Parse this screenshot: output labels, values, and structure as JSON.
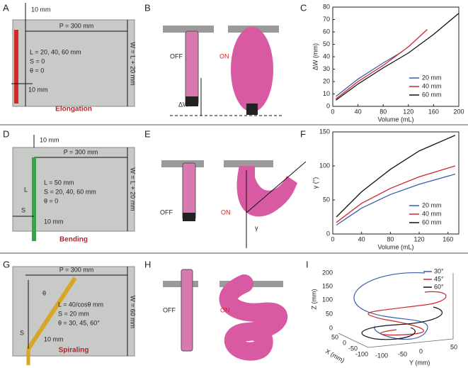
{
  "panels": {
    "A": {
      "letter": "A",
      "top": "10 mm",
      "P": "P = 300 mm",
      "W": "W = L + 20 mm",
      "params": [
        "L = 20, 40, 60 mm",
        "S = 0",
        "θ = 0"
      ],
      "bottom": "10 mm",
      "caption": "Elongation"
    },
    "B": {
      "letter": "B",
      "off": "OFF",
      "on": "ON",
      "delta": "ΔW"
    },
    "C": {
      "letter": "C"
    },
    "D": {
      "letter": "D",
      "top": "10 mm",
      "P": "P = 300 mm",
      "W": "W = L + 20 mm",
      "L": "L",
      "S": "S",
      "params": [
        "L = 50 mm",
        "S = 20, 40, 60 mm",
        "θ = 0"
      ],
      "bottom": "10 mm",
      "caption": "Bending"
    },
    "E": {
      "letter": "E",
      "off": "OFF",
      "on": "ON",
      "gamma": "γ"
    },
    "F": {
      "letter": "F"
    },
    "G": {
      "letter": "G",
      "P": "P = 300 mm",
      "W": "W = 60 mm",
      "theta": "θ",
      "S": "S",
      "params": [
        "L = 40/cosθ mm",
        "S = 20 mm",
        "θ = 30, 45, 60°"
      ],
      "bottom": "10 mm",
      "caption": "Spiraling"
    },
    "H": {
      "letter": "H",
      "off": "OFF",
      "on": "ON"
    },
    "I": {
      "letter": "I",
      "z_label": "Z (mm)",
      "x_label": "X (mm)",
      "y_label": "Y (mm)",
      "z_ticks": [
        "0",
        "50",
        "100",
        "150",
        "200"
      ],
      "x_ticks": [
        "50",
        "0",
        "-50",
        "-100"
      ],
      "y_ticks": [
        "-100",
        "-50",
        "0",
        "50"
      ],
      "legend": [
        {
          "name": "30°",
          "color": "#3b5bab"
        },
        {
          "name": "45°",
          "color": "#d0252b"
        },
        {
          "name": "60°",
          "color": "#111111"
        }
      ]
    }
  },
  "chart_data": [
    {
      "type": "line",
      "x_label": "Volume (mL)",
      "y_label": "ΔW (mm)",
      "xlim": [
        0,
        200
      ],
      "xticks": [
        0,
        40,
        80,
        120,
        160,
        200
      ],
      "ylim": [
        0,
        80
      ],
      "yticks": [
        0,
        10,
        20,
        30,
        40,
        50,
        60,
        70,
        80
      ],
      "series": [
        {
          "name": "20 mm",
          "color": "#3b5bab",
          "x": [
            5,
            40,
            80,
            110
          ],
          "values": [
            8,
            22,
            35,
            44
          ]
        },
        {
          "name": "40 mm",
          "color": "#d0252b",
          "x": [
            5,
            40,
            80,
            120,
            150
          ],
          "values": [
            6,
            20,
            33,
            48,
            62
          ]
        },
        {
          "name": "60 mm",
          "color": "#111111",
          "x": [
            5,
            40,
            80,
            120,
            160,
            200
          ],
          "values": [
            5,
            18,
            31,
            43,
            58,
            75
          ]
        }
      ]
    },
    {
      "type": "line",
      "x_label": "Volume (mL)",
      "y_label": "γ (°)",
      "xlim": [
        0,
        175
      ],
      "xticks": [
        0,
        40,
        80,
        120,
        160
      ],
      "ylim": [
        0,
        150
      ],
      "yticks": [
        0,
        50,
        100,
        150
      ],
      "series": [
        {
          "name": "20 mm",
          "color": "#3b5bab",
          "x": [
            5,
            40,
            80,
            120,
            170
          ],
          "values": [
            13,
            38,
            58,
            73,
            88
          ]
        },
        {
          "name": "40 mm",
          "color": "#d0252b",
          "x": [
            5,
            40,
            80,
            120,
            170
          ],
          "values": [
            17,
            45,
            67,
            84,
            100
          ]
        },
        {
          "name": "60 mm",
          "color": "#111111",
          "x": [
            5,
            40,
            80,
            120,
            170
          ],
          "values": [
            25,
            62,
            95,
            122,
            145
          ]
        }
      ]
    }
  ]
}
